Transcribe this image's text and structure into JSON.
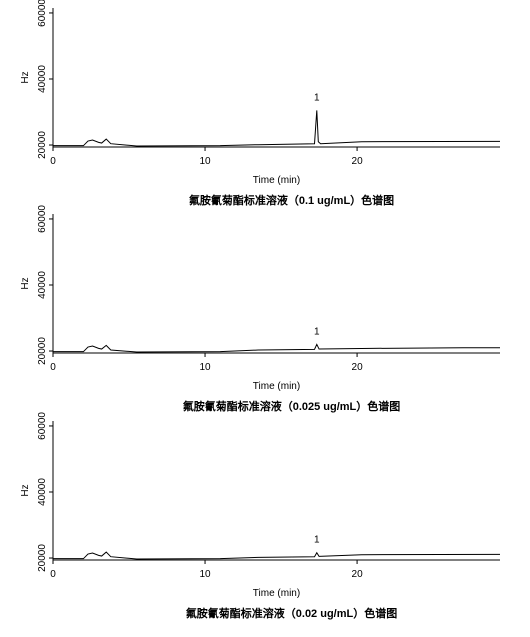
{
  "chart_data": [
    {
      "type": "line",
      "title": "氟胺氰菊酯标准溶液（0.1 ug/mL）色谱图",
      "x_label": "Time (min)",
      "y_label": "Hz",
      "x": [
        0,
        2,
        2.3,
        2.6,
        3.0,
        3.2,
        3.5,
        3.8,
        5.5,
        11,
        13.5,
        17.2,
        17.35,
        17.45,
        17.6,
        20.3,
        29.4
      ],
      "series": [
        {
          "color": "#000000",
          "values": [
            19800,
            19800,
            21200,
            21500,
            20800,
            20600,
            21800,
            20400,
            19700,
            19800,
            20100,
            20400,
            30500,
            21000,
            20400,
            21000,
            21100
          ]
        }
      ],
      "peak_label": "1",
      "peak_x": 17.35,
      "xlim": [
        0,
        29.4
      ],
      "xticks": [
        0,
        10,
        20
      ],
      "ylim": [
        19400,
        61500
      ],
      "yticks": [
        20000,
        40000,
        60000
      ]
    },
    {
      "type": "line",
      "title": "氟胺氰菊酯标准溶液（0.025 ug/mL）色谱图",
      "x_label": "Time (min)",
      "y_label": "Hz",
      "x": [
        0,
        2,
        2.3,
        2.6,
        3.0,
        3.2,
        3.5,
        3.8,
        5.5,
        11,
        13.5,
        17.2,
        17.35,
        17.5,
        21,
        27,
        29.4
      ],
      "series": [
        {
          "color": "#000000",
          "values": [
            19800,
            19800,
            21200,
            21500,
            20800,
            20600,
            21700,
            20300,
            19700,
            19800,
            20300,
            20500,
            22000,
            20600,
            20800,
            21000,
            21000
          ]
        }
      ],
      "peak_label": "1",
      "peak_x": 17.35,
      "xlim": [
        0,
        29.4
      ],
      "xticks": [
        0,
        10,
        20
      ],
      "ylim": [
        19400,
        61500
      ],
      "yticks": [
        20000,
        40000,
        60000
      ]
    },
    {
      "type": "line",
      "title": "氟胺氰菊酯标准溶液（0.02 ug/mL）色谱图",
      "x_label": "Time (min)",
      "y_label": "Hz",
      "x": [
        0,
        2,
        2.3,
        2.6,
        3.0,
        3.2,
        3.5,
        3.8,
        5.5,
        11,
        13.5,
        17.2,
        17.35,
        17.5,
        20.3,
        29.4
      ],
      "series": [
        {
          "color": "#000000",
          "values": [
            19800,
            19800,
            21200,
            21500,
            20800,
            20600,
            21800,
            20400,
            19700,
            19800,
            20200,
            20400,
            21600,
            20500,
            21000,
            21100
          ]
        }
      ],
      "peak_label": "1",
      "peak_x": 17.35,
      "xlim": [
        0,
        29.4
      ],
      "xticks": [
        0,
        10,
        20
      ],
      "ylim": [
        19400,
        61500
      ],
      "yticks": [
        20000,
        40000,
        60000
      ]
    }
  ]
}
